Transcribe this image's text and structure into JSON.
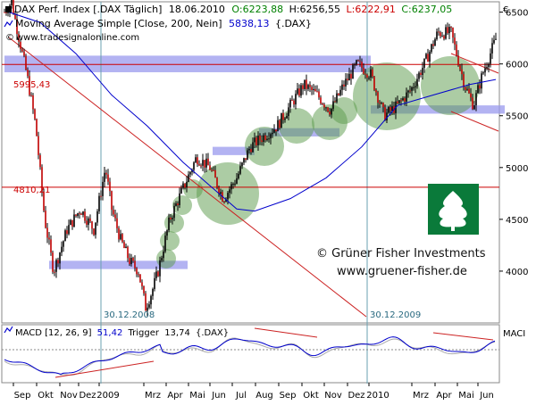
{
  "header": {
    "instrument": "DAX Perf. Index [.DAX  Täglich]",
    "date": "18.06.2010",
    "ohlc": [
      "O:6223,88",
      "H:6256,55",
      "L:6222,91",
      "C:6237,05"
    ],
    "ma_label": "Moving Average Simple [Close, 200, Nein]",
    "ma_value": "5838,13",
    "ma_symbol": "{.DAX}",
    "website": "www.tradesignalonline.com",
    "currency": "€"
  },
  "levels": {
    "level_high": "5995,43",
    "level_low": "4810,21"
  },
  "markers": {
    "marker1": "30.12.2008",
    "marker2": "30.12.2009"
  },
  "watermark": {
    "copyright": "© Grüner Fisher Investments",
    "url": "www.gruener-fisher.de"
  },
  "macd": {
    "label": "MACD [12, 26, 9]",
    "value": "51,42",
    "trigger_label": "Trigger",
    "trigger_value": "13,74",
    "symbol": "{.DAX}",
    "side_label": "MACI"
  },
  "colors": {
    "price": "#000000",
    "down_candle": "#c00000",
    "ma_line": "#0000cc",
    "horizontal_lines": "#cc0000",
    "zone_band": "#9999ee",
    "bubbles": "#5a9a4a",
    "logo": "#0a7a3a",
    "macd_line": "#0000cc",
    "trigger_line": "#aaaaaa"
  },
  "chart_data": {
    "type": "line",
    "ylim": [
      3500,
      6600
    ],
    "y_ticks": [
      "6500",
      "6000",
      "5500",
      "5000",
      "4500",
      "4000"
    ],
    "x_tick_labels": [
      "Sep",
      "Okt",
      "Nov",
      "Dez",
      "2009",
      "Mrz",
      "Apr",
      "Mai",
      "Jun",
      "Jul",
      "Aug",
      "Sep",
      "Okt",
      "Nov",
      "Dez",
      "2010",
      "Mrz",
      "Apr",
      "Mai",
      "Jun"
    ],
    "series": [
      {
        "x": [
          0,
          8,
          15,
          25,
          35,
          45,
          55,
          70,
          85,
          100,
          113,
          120,
          130,
          140,
          150,
          158,
          165,
          172,
          185,
          200,
          215,
          230,
          245,
          260,
          275,
          290,
          305,
          320,
          335,
          350,
          365,
          380,
          395,
          410,
          425,
          440,
          455,
          470,
          485,
          500,
          515,
          525,
          535,
          550
        ],
        "values": [
          6500,
          6600,
          6300,
          5900,
          5400,
          4500,
          4000,
          4400,
          4600,
          4400,
          5000,
          4600,
          4300,
          4100,
          4000,
          3650,
          3800,
          4000,
          4500,
          4800,
          5100,
          5000,
          4700,
          4900,
          5200,
          5300,
          5400,
          5600,
          5800,
          5700,
          5550,
          5800,
          6000,
          5900,
          5500,
          5600,
          5750,
          6000,
          6300,
          6300,
          5800,
          5600,
          5900,
          6240
        ]
      },
      {
        "name": "Moving Average Simple [Close, 200, Nein]",
        "x": [
          5,
          40,
          80,
          120,
          160,
          200,
          240,
          260,
          280,
          320,
          360,
          400,
          440,
          480,
          520,
          550
        ],
        "values": [
          6500,
          6400,
          6100,
          5700,
          5400,
          5050,
          4750,
          4600,
          4580,
          4700,
          4900,
          5200,
          5600,
          5700,
          5800,
          5850
        ]
      }
    ],
    "horizontal_levels": [
      5995.43,
      4810.21
    ],
    "marker_dates": [
      "30.12.2008",
      "30.12.2009"
    ],
    "zones": [
      {
        "from": 4020,
        "to": 4100,
        "x": [
          50,
          205
        ]
      },
      {
        "from": 5920,
        "to": 6080,
        "x": [
          0,
          410
        ]
      },
      {
        "from": 5520,
        "to": 5600,
        "x": [
          410,
          560
        ]
      },
      {
        "from": 5300,
        "to": 5380,
        "x": [
          285,
          375
        ]
      },
      {
        "from": 5120,
        "to": 5200,
        "x": [
          233,
          280
        ]
      }
    ]
  }
}
